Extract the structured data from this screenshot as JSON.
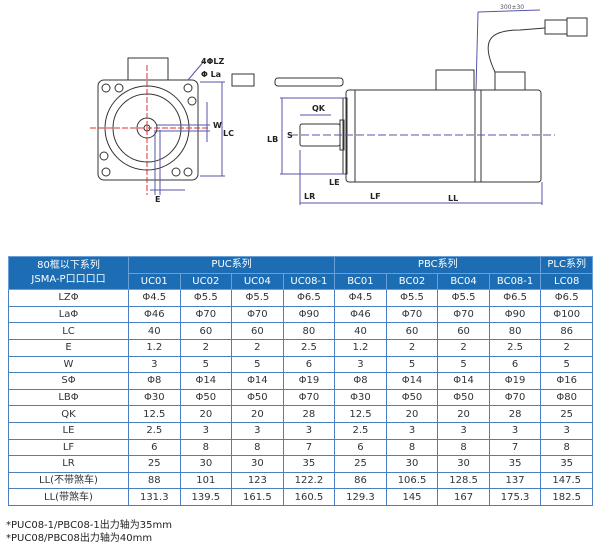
{
  "drawing": {
    "labels": {
      "lz": "4ΦLZ",
      "la": "Φ La",
      "w": "W",
      "lc": "LC",
      "e": "E",
      "qk": "QK",
      "lb": "LB",
      "s": "S",
      "le": "LE",
      "lr": "LR",
      "lf": "LF",
      "ll": "LL",
      "cable": "300±30"
    }
  },
  "table": {
    "corner": [
      "80框以下系列",
      "JSMA-P口口口口"
    ],
    "groups": [
      "PUC系列",
      "PBC系列",
      "PLC系列"
    ],
    "models": [
      "UC01",
      "UC02",
      "UC04",
      "UC08-1",
      "BC01",
      "BC02",
      "BC04",
      "BC08-1",
      "LC08"
    ],
    "rows": [
      {
        "label": "LZΦ",
        "values": [
          "Φ4.5",
          "Φ5.5",
          "Φ5.5",
          "Φ6.5",
          "Φ4.5",
          "Φ5.5",
          "Φ5.5",
          "Φ6.5",
          "Φ6.5"
        ]
      },
      {
        "label": "LaΦ",
        "values": [
          "Φ46",
          "Φ70",
          "Φ70",
          "Φ90",
          "Φ46",
          "Φ70",
          "Φ70",
          "Φ90",
          "Φ100"
        ]
      },
      {
        "label": "LC",
        "values": [
          "40",
          "60",
          "60",
          "80",
          "40",
          "60",
          "60",
          "80",
          "86"
        ]
      },
      {
        "label": "E",
        "values": [
          "1.2",
          "2",
          "2",
          "2.5",
          "1.2",
          "2",
          "2",
          "2.5",
          "2"
        ]
      },
      {
        "label": "W",
        "values": [
          "3",
          "5",
          "5",
          "6",
          "3",
          "5",
          "5",
          "6",
          "5"
        ]
      },
      {
        "label": "SΦ",
        "values": [
          "Φ8",
          "Φ14",
          "Φ14",
          "Φ19",
          "Φ8",
          "Φ14",
          "Φ14",
          "Φ19",
          "Φ16"
        ]
      },
      {
        "label": "LBΦ",
        "values": [
          "Φ30",
          "Φ50",
          "Φ50",
          "Φ70",
          "Φ30",
          "Φ50",
          "Φ50",
          "Φ70",
          "Φ80"
        ]
      },
      {
        "label": "QK",
        "values": [
          "12.5",
          "20",
          "20",
          "28",
          "12.5",
          "20",
          "20",
          "28",
          "25"
        ]
      },
      {
        "label": "LE",
        "values": [
          "2.5",
          "3",
          "3",
          "3",
          "2.5",
          "3",
          "3",
          "3",
          "3"
        ]
      },
      {
        "label": "LF",
        "values": [
          "6",
          "8",
          "8",
          "7",
          "6",
          "8",
          "8",
          "7",
          "8"
        ]
      },
      {
        "label": "LR",
        "values": [
          "25",
          "30",
          "30",
          "35",
          "25",
          "30",
          "30",
          "35",
          "35"
        ]
      },
      {
        "label": "LL(不带煞车)",
        "values": [
          "88",
          "101",
          "123",
          "122.2",
          "86",
          "106.5",
          "128.5",
          "137",
          "147.5"
        ]
      },
      {
        "label": "LL(带煞车)",
        "values": [
          "131.3",
          "139.5",
          "161.5",
          "160.5",
          "129.3",
          "145",
          "167",
          "175.3",
          "182.5"
        ]
      }
    ]
  },
  "notes": [
    "*PUC08-1/PBC08-1出力轴为35mm",
    "*PUC08/PBC08出力轴为40mm"
  ]
}
